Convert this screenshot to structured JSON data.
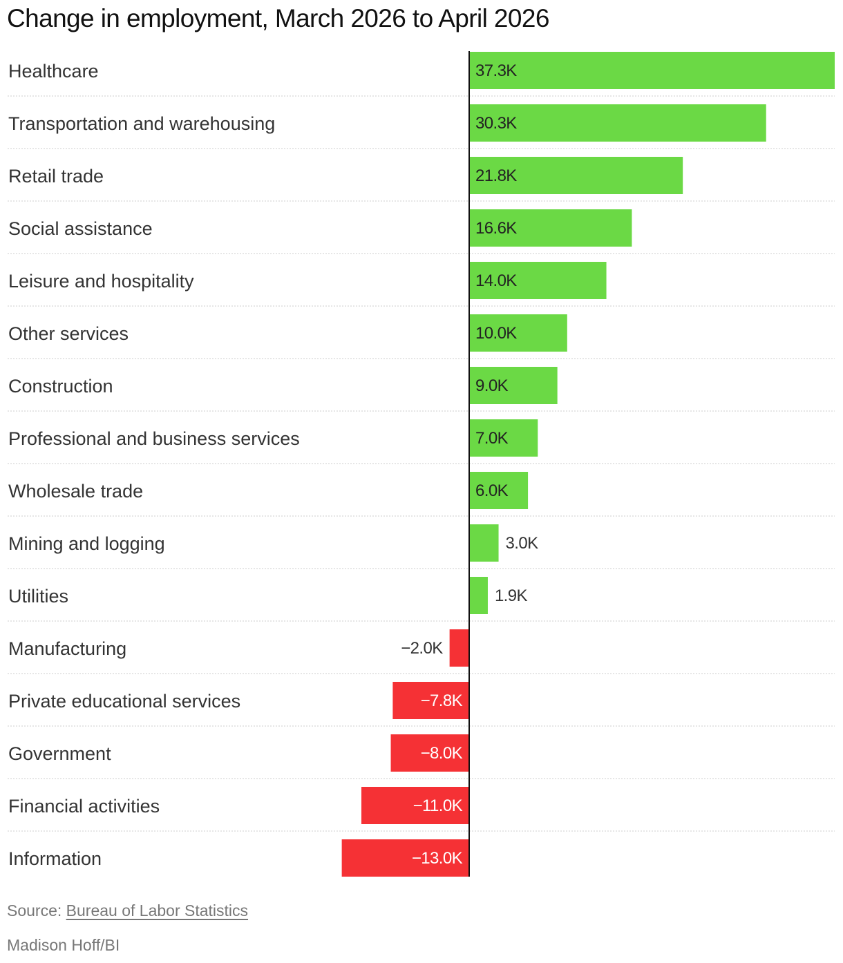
{
  "chart_data": {
    "type": "bar",
    "orientation": "horizontal",
    "title": "Change in employment, March 2026 to April 2026",
    "categories": [
      "Healthcare",
      "Transportation and warehousing",
      "Retail trade",
      "Social assistance",
      "Leisure and hospitality",
      "Other services",
      "Construction",
      "Professional and business services",
      "Wholesale trade",
      "Mining and logging",
      "Utilities",
      "Manufacturing",
      "Private educational services",
      "Government",
      "Financial activities",
      "Information"
    ],
    "values": [
      37.3,
      30.3,
      21.8,
      16.6,
      14.0,
      10.0,
      9.0,
      7.0,
      6.0,
      3.0,
      1.9,
      -2.0,
      -7.8,
      -8.0,
      -11.0,
      -13.0
    ],
    "value_labels": [
      "37.3K",
      "30.3K",
      "21.8K",
      "16.6K",
      "14.0K",
      "10.0K",
      "9.0K",
      "7.0K",
      "6.0K",
      "3.0K",
      "1.9K",
      "-2.0K",
      "-7.8K",
      "-8.0K",
      "-11.0K",
      "-13.0K"
    ],
    "unit": "K",
    "xlim": [
      -13.0,
      37.3
    ],
    "grid": false,
    "legend": "none",
    "colors": {
      "positive": "#6bd945",
      "negative": "#f53135",
      "axis": "#111111",
      "divider": "#cccccc"
    }
  },
  "footer": {
    "source_prefix": "Source: ",
    "source_link": "Bureau of Labor Statistics",
    "credit": "Madison Hoff/BI"
  }
}
